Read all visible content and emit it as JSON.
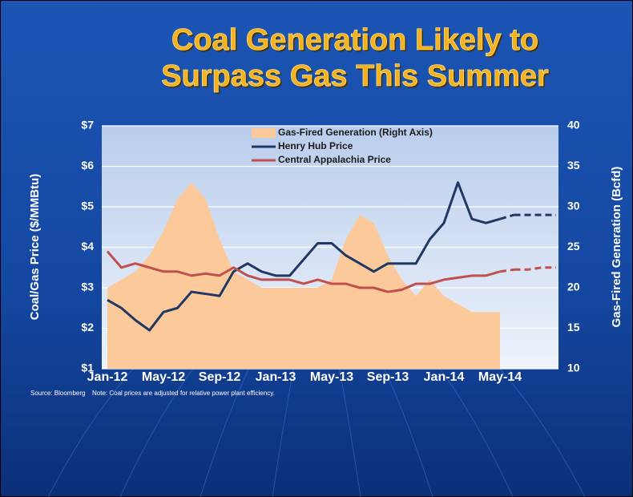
{
  "chart_data": {
    "type": "line",
    "title": [
      "Coal Generation Likely to",
      "Surpass Gas This Summer"
    ],
    "ylabel": "Coal/Gas Price ($/MMBtu)",
    "y2label": "Gas-Fired Generation (Bcfd)",
    "source": "Source: Bloomberg",
    "note": "Note: Coal prices are adjusted for relative power plant efficiency.",
    "categories": [
      "Jan-12",
      null,
      null,
      null,
      "May-12",
      null,
      null,
      null,
      "Sep-12",
      null,
      null,
      null,
      "Jan-13",
      null,
      null,
      null,
      "May-13",
      null,
      null,
      null,
      "Sep-13",
      null,
      null,
      null,
      "Jan-14",
      null,
      null,
      null,
      "May-14",
      null,
      null,
      null,
      null
    ],
    "ylim": [
      1,
      7
    ],
    "yticks": [
      {
        "value": 1,
        "label": "$1"
      },
      {
        "value": 2,
        "label": "$2"
      },
      {
        "value": 3,
        "label": "$3"
      },
      {
        "value": 4,
        "label": "$4"
      },
      {
        "value": 5,
        "label": "$5"
      },
      {
        "value": 6,
        "label": "$6"
      },
      {
        "value": 7,
        "label": "$7"
      }
    ],
    "y2lim": [
      10,
      40
    ],
    "y2ticks": [
      10,
      15,
      20,
      25,
      30,
      35,
      40
    ],
    "grid": true,
    "series": [
      {
        "name": "Gas-Fired Generation (Right Axis)",
        "kind": "area",
        "axis": "y2",
        "color": "#fcc99a",
        "values": [
          20,
          21,
          22,
          24,
          27,
          31,
          33,
          31,
          26,
          22,
          21,
          20,
          20,
          20,
          20,
          20,
          21,
          26,
          29,
          28,
          24,
          21,
          19,
          21,
          19,
          18,
          17,
          17,
          17,
          null,
          null,
          null,
          null
        ]
      },
      {
        "name": "Henry Hub Price",
        "kind": "line",
        "color": "#1f3864",
        "values": [
          2.7,
          2.5,
          2.2,
          1.95,
          2.4,
          2.5,
          2.9,
          2.85,
          2.8,
          3.4,
          3.6,
          3.4,
          3.3,
          3.3,
          3.7,
          4.1,
          4.1,
          3.8,
          3.6,
          3.4,
          3.6,
          3.6,
          3.6,
          4.2,
          4.6,
          5.6,
          4.7,
          4.6,
          4.7,
          null,
          null,
          null,
          null
        ],
        "projection_values": [
          null,
          null,
          null,
          null,
          null,
          null,
          null,
          null,
          null,
          null,
          null,
          null,
          null,
          null,
          null,
          null,
          null,
          null,
          null,
          null,
          null,
          null,
          null,
          null,
          null,
          null,
          null,
          null,
          null,
          4.8,
          4.8,
          4.8,
          4.8
        ]
      },
      {
        "name": "Central Appalachia  Price",
        "kind": "line",
        "color": "#c0504d",
        "values": [
          3.9,
          3.5,
          3.6,
          3.5,
          3.4,
          3.4,
          3.3,
          3.35,
          3.3,
          3.5,
          3.3,
          3.2,
          3.2,
          3.2,
          3.1,
          3.2,
          3.1,
          3.1,
          3.0,
          3.0,
          2.9,
          2.95,
          3.1,
          3.1,
          3.2,
          3.25,
          3.3,
          3.3,
          3.4,
          null,
          null,
          null,
          null
        ],
        "projection_values": [
          null,
          null,
          null,
          null,
          null,
          null,
          null,
          null,
          null,
          null,
          null,
          null,
          null,
          null,
          null,
          null,
          null,
          null,
          null,
          null,
          null,
          null,
          null,
          null,
          null,
          null,
          null,
          null,
          null,
          3.45,
          3.45,
          3.5,
          3.5
        ]
      }
    ]
  }
}
